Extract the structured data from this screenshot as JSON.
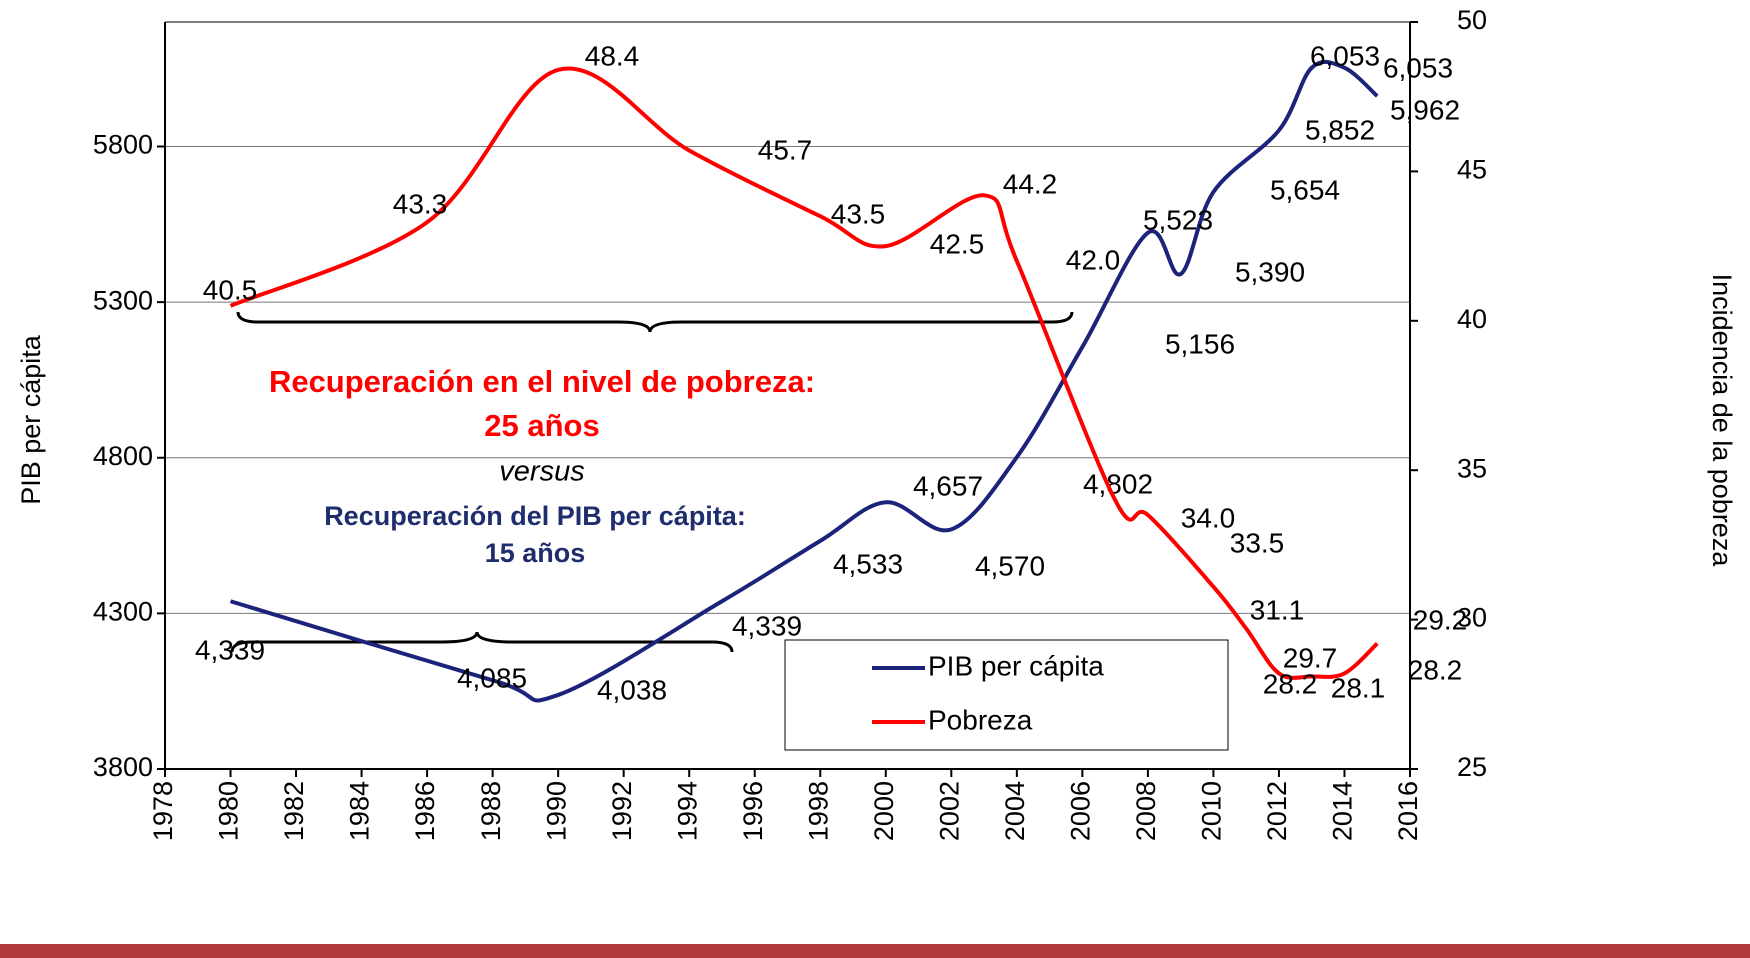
{
  "chart_data": {
    "type": "line",
    "y_label": "PIB per cápita",
    "y2_label": "Incidencia de la pobreza",
    "xlim": [
      1978,
      2016
    ],
    "xticks": [
      1978,
      1980,
      1982,
      1984,
      1986,
      1988,
      1990,
      1992,
      1994,
      1996,
      1998,
      2000,
      2002,
      2004,
      2006,
      2008,
      2010,
      2012,
      2014,
      2016
    ],
    "ylim": [
      3800,
      6200
    ],
    "yticks": [
      3800,
      4300,
      4800,
      5300,
      5800
    ],
    "y2lim": [
      25,
      50
    ],
    "y2ticks": [
      25,
      30,
      35,
      40,
      45,
      50
    ],
    "grid": true,
    "legend": "lower right",
    "series": [
      {
        "name": "PIB per cápita",
        "color": "#1b237a",
        "x": [
          1980,
          1988,
          1990,
          1995,
          1998,
          2000,
          2002,
          2004,
          2006,
          2008,
          2009,
          2010,
          2012,
          2013,
          2014,
          2015
        ],
        "values": [
          4339,
          4085,
          4038,
          4339,
          4533,
          4657,
          4570,
          4802,
          5156,
          5523,
          5390,
          5654,
          5852,
          6053,
          6053,
          5962
        ],
        "value_labels": [
          "4,339",
          "4,085",
          "4,038",
          "4,339",
          "4,533",
          "4,657",
          "4,570",
          "4,802",
          "5,156",
          "5,523",
          "5,390",
          "5,654",
          "5,852",
          "6,053",
          "6,053",
          "5,962"
        ]
      },
      {
        "name": "Pobreza",
        "color": "#ff0000",
        "axis": "y2",
        "x": [
          1980,
          1986,
          1990,
          1994,
          1998,
          2000,
          2003,
          2004,
          2007,
          2008,
          2010,
          2011,
          2012,
          2013,
          2014,
          2015
        ],
        "values": [
          40.5,
          43.3,
          48.4,
          45.7,
          43.5,
          42.5,
          44.2,
          42.0,
          34.0,
          33.5,
          31.1,
          29.7,
          28.2,
          28.1,
          28.2,
          29.2
        ],
        "value_labels": [
          "40.5",
          "43.3",
          "48.4",
          "45.7",
          "43.5",
          "42.5",
          "44.2",
          "42.0",
          "34.0",
          "33.5",
          "31.1",
          "29.7",
          "28.2",
          "28.1",
          "28.2",
          "29.2"
        ]
      }
    ],
    "annotations": [
      "Recuperación en el nivel de pobreza:",
      "25 años",
      "versus",
      "Recuperación del PIB per cápita:",
      "15 años"
    ]
  }
}
